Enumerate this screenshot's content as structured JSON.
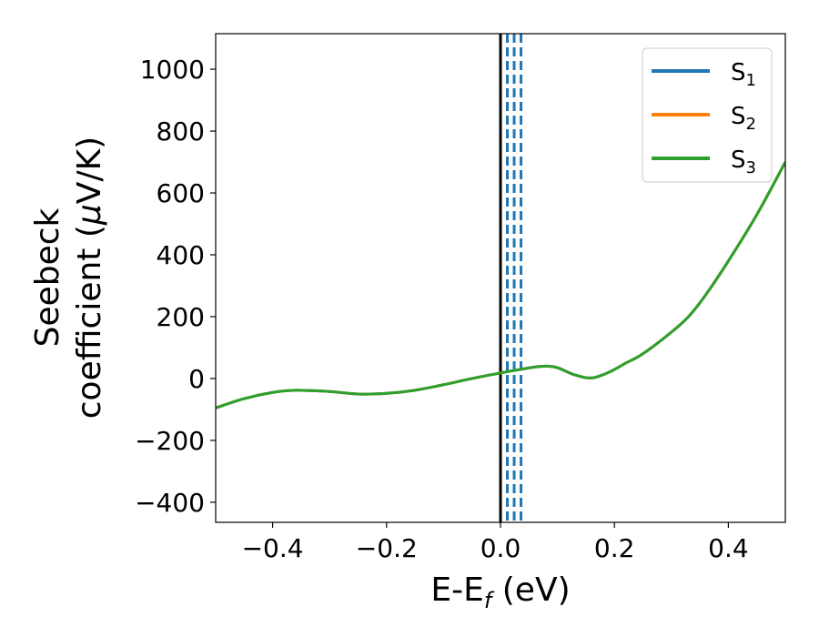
{
  "chart_data": {
    "type": "line",
    "xlabel": {
      "main": "E-E",
      "sub": "f",
      "unit": " (eV)"
    },
    "ylabel": {
      "line1": "Seebeck",
      "line2_pre": "coefficient  (",
      "mu": "μ",
      "line2_post": "V/K)"
    },
    "xlim": [
      -0.5,
      0.5
    ],
    "ylim": [
      -465,
      1115
    ],
    "xticks": [
      -0.4,
      -0.2,
      0.0,
      0.2,
      0.4
    ],
    "xtick_labels": [
      "−0.4",
      "−0.2",
      "0.0",
      "0.2",
      "0.4"
    ],
    "yticks": [
      -400,
      -200,
      0,
      200,
      400,
      600,
      800,
      1000
    ],
    "ytick_labels": [
      "−400",
      "−200",
      "0",
      "200",
      "400",
      "600",
      "800",
      "1000"
    ],
    "legend_position": "top-right",
    "fermi_line": {
      "x": 0.0,
      "color": "#000000"
    },
    "dashed_lines": {
      "x": [
        0.012,
        0.024,
        0.036
      ],
      "color": "#1f77b4"
    },
    "series": [
      {
        "name": "S",
        "sub": "1",
        "color": "#1f77b4",
        "x": [
          -0.5,
          -0.45,
          -0.4,
          -0.36,
          -0.3,
          -0.25,
          -0.2,
          -0.15,
          -0.1,
          -0.05,
          0.0,
          0.03,
          0.06,
          0.08,
          0.1,
          0.13,
          0.16,
          0.19,
          0.22,
          0.25,
          0.3,
          0.33,
          0.36,
          0.4,
          0.45,
          0.5
        ],
        "y": [
          -95,
          -65,
          -45,
          -38,
          -42,
          -50,
          -48,
          -38,
          -20,
          0,
          18,
          28,
          37,
          40,
          35,
          12,
          2,
          20,
          50,
          80,
          150,
          200,
          270,
          380,
          530,
          700
        ]
      },
      {
        "name": "S",
        "sub": "2",
        "color": "#ff7f0e",
        "x": [
          -0.5,
          -0.45,
          -0.4,
          -0.36,
          -0.3,
          -0.25,
          -0.2,
          -0.15,
          -0.1,
          -0.05,
          0.0,
          0.03,
          0.06,
          0.08,
          0.1,
          0.13,
          0.16,
          0.19,
          0.22,
          0.25,
          0.3,
          0.33,
          0.36,
          0.4,
          0.45,
          0.5
        ],
        "y": [
          -95,
          -65,
          -45,
          -38,
          -42,
          -50,
          -48,
          -38,
          -20,
          0,
          18,
          28,
          37,
          40,
          35,
          12,
          2,
          20,
          50,
          80,
          150,
          200,
          270,
          380,
          530,
          700
        ]
      },
      {
        "name": "S",
        "sub": "3",
        "color": "#2ca02c",
        "x": [
          -0.5,
          -0.45,
          -0.4,
          -0.36,
          -0.3,
          -0.25,
          -0.2,
          -0.15,
          -0.1,
          -0.05,
          0.0,
          0.03,
          0.06,
          0.08,
          0.1,
          0.13,
          0.16,
          0.19,
          0.22,
          0.25,
          0.3,
          0.33,
          0.36,
          0.4,
          0.45,
          0.5
        ],
        "y": [
          -95,
          -65,
          -45,
          -38,
          -42,
          -50,
          -48,
          -38,
          -20,
          0,
          18,
          28,
          37,
          40,
          35,
          12,
          2,
          20,
          50,
          80,
          150,
          200,
          270,
          380,
          530,
          700
        ]
      }
    ]
  }
}
